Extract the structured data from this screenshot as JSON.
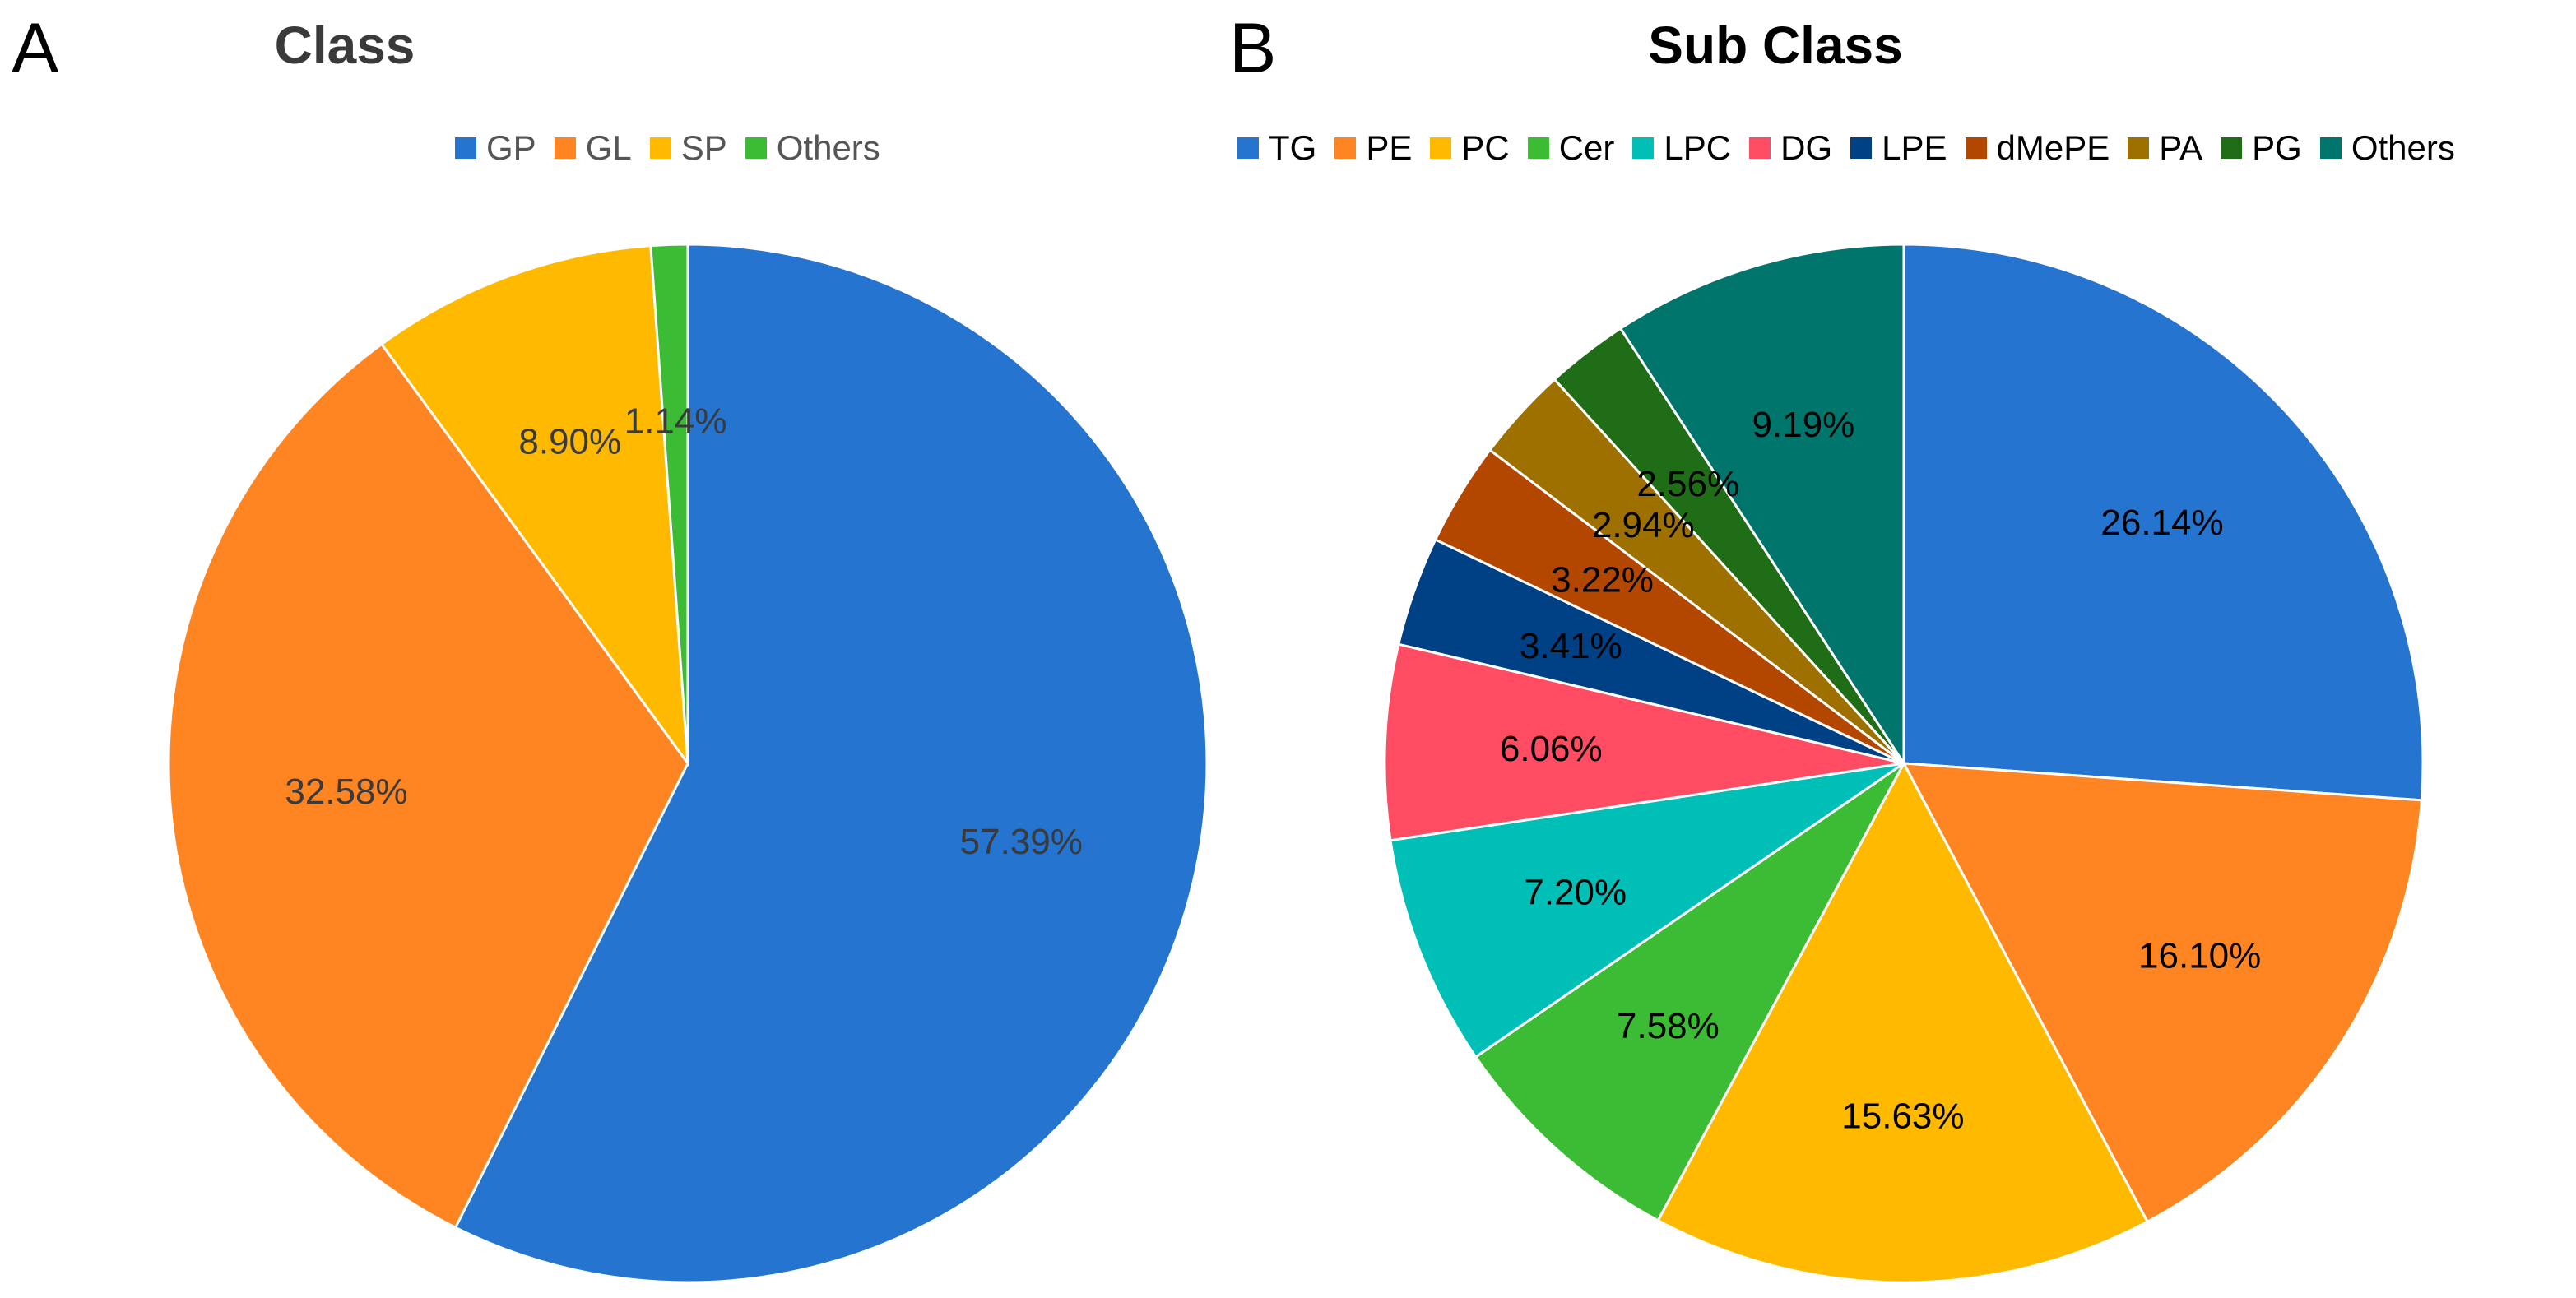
{
  "chart_data": [
    {
      "type": "pie",
      "panel_letter": "A",
      "title": "Class",
      "legend": "top",
      "label_color": "#3a3a3a",
      "slices": [
        {
          "name": "GP",
          "value": 57.39,
          "label": "57.39%",
          "color": "#2474D0"
        },
        {
          "name": "GL",
          "value": 32.58,
          "label": "32.58%",
          "color": "#FF8522"
        },
        {
          "name": "SP",
          "value": 8.9,
          "label": "8.90%",
          "color": "#FFBA00"
        },
        {
          "name": "Others",
          "value": 1.14,
          "label": "1.14%",
          "color": "#3CBB34"
        }
      ]
    },
    {
      "type": "pie",
      "panel_letter": "B",
      "title": "Sub Class",
      "legend": "top",
      "label_color": "#000000",
      "slices": [
        {
          "name": "TG",
          "value": 26.14,
          "label": "26.14%",
          "color": "#2474D0"
        },
        {
          "name": "PE",
          "value": 16.1,
          "label": "16.10%",
          "color": "#FF8522"
        },
        {
          "name": "PC",
          "value": 15.63,
          "label": "15.63%",
          "color": "#FFBA00"
        },
        {
          "name": "Cer",
          "value": 7.58,
          "label": "7.58%",
          "color": "#3CBB34"
        },
        {
          "name": "LPC",
          "value": 7.2,
          "label": "7.20%",
          "color": "#00BFB6"
        },
        {
          "name": "DG",
          "value": 6.06,
          "label": "6.06%",
          "color": "#FF4C63"
        },
        {
          "name": "LPE",
          "value": 3.41,
          "label": "3.41%",
          "color": "#004084"
        },
        {
          "name": "dMePE",
          "value": 3.22,
          "label": "3.22%",
          "color": "#B34700"
        },
        {
          "name": "PA",
          "value": 2.94,
          "label": "2.94%",
          "color": "#9E7000"
        },
        {
          "name": "PG",
          "value": 2.56,
          "label": "2.56%",
          "color": "#206D17"
        },
        {
          "name": "Others",
          "value": 9.19,
          "label": "9.19%",
          "color": "#00756C"
        }
      ]
    }
  ]
}
